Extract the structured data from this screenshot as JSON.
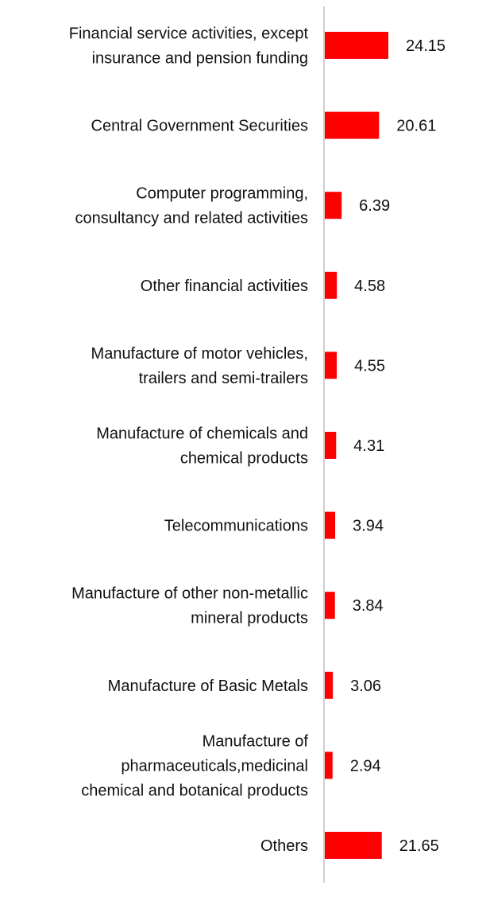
{
  "chart_data": {
    "type": "bar",
    "orientation": "horizontal",
    "title": "",
    "xlabel": "",
    "ylabel": "",
    "grid": false,
    "legend": "none",
    "bar_color": "#ff0000",
    "axis_color": "#cfcfcf",
    "categories": [
      [
        "Financial service activities, except",
        "insurance and pension funding"
      ],
      [
        "Central Government Securities"
      ],
      [
        "Computer programming,",
        "consultancy and related activities"
      ],
      [
        "Other financial activities"
      ],
      [
        "Manufacture of motor vehicles,",
        "trailers and semi-trailers"
      ],
      [
        "Manufacture of chemicals and",
        "chemical products"
      ],
      [
        "Telecommunications"
      ],
      [
        "Manufacture of other non-metallic",
        "mineral products"
      ],
      [
        "Manufacture of Basic Metals"
      ],
      [
        "Manufacture of",
        "pharmaceuticals,medicinal",
        "chemical and botanical products"
      ],
      [
        "Others"
      ]
    ],
    "values": [
      24.15,
      20.61,
      6.39,
      4.58,
      4.55,
      4.31,
      3.94,
      3.84,
      3.06,
      2.94,
      21.65
    ],
    "value_labels": [
      "24.15",
      "20.61",
      "6.39",
      "4.58",
      "4.55",
      "4.31",
      "3.94",
      "3.84",
      "3.06",
      "2.94",
      "21.65"
    ],
    "xlim": [
      0,
      26
    ]
  }
}
